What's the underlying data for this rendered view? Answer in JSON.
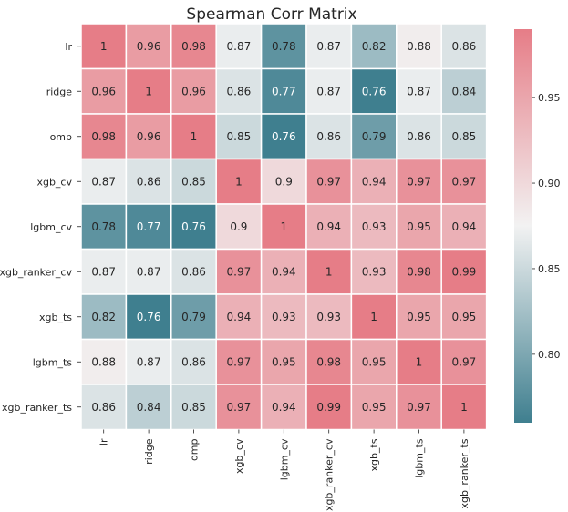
{
  "chart_data": {
    "type": "heatmap",
    "title": "Spearman Corr Matrix",
    "xlabel": "",
    "ylabel": "",
    "rows": [
      "lr",
      "ridge",
      "omp",
      "xgb_cv",
      "lgbm_cv",
      "xgb_ranker_cv",
      "xgb_ts",
      "lgbm_ts",
      "xgb_ranker_ts"
    ],
    "columns": [
      "lr",
      "ridge",
      "omp",
      "xgb_cv",
      "lgbm_cv",
      "xgb_ranker_cv",
      "xgb_ts",
      "lgbm_ts",
      "xgb_ranker_ts"
    ],
    "values": [
      [
        1,
        0.96,
        0.98,
        0.87,
        0.78,
        0.87,
        0.82,
        0.88,
        0.86
      ],
      [
        0.96,
        1,
        0.96,
        0.86,
        0.77,
        0.87,
        0.76,
        0.87,
        0.84
      ],
      [
        0.98,
        0.96,
        1,
        0.85,
        0.76,
        0.86,
        0.79,
        0.86,
        0.85
      ],
      [
        0.87,
        0.86,
        0.85,
        1,
        0.9,
        0.97,
        0.94,
        0.97,
        0.97
      ],
      [
        0.78,
        0.77,
        0.76,
        0.9,
        1,
        0.94,
        0.93,
        0.95,
        0.94
      ],
      [
        0.87,
        0.87,
        0.86,
        0.97,
        0.94,
        1,
        0.93,
        0.98,
        0.99
      ],
      [
        0.82,
        0.76,
        0.79,
        0.94,
        0.93,
        0.93,
        1,
        0.95,
        0.95
      ],
      [
        0.88,
        0.87,
        0.86,
        0.97,
        0.95,
        0.98,
        0.95,
        1,
        0.97
      ],
      [
        0.86,
        0.84,
        0.85,
        0.97,
        0.94,
        0.99,
        0.95,
        0.97,
        1
      ]
    ],
    "display_values": [
      [
        "1",
        "0.96",
        "0.98",
        "0.87",
        "0.78",
        "0.87",
        "0.82",
        "0.88",
        "0.86"
      ],
      [
        "0.96",
        "1",
        "0.96",
        "0.86",
        "0.77",
        "0.87",
        "0.76",
        "0.87",
        "0.84"
      ],
      [
        "0.98",
        "0.96",
        "1",
        "0.85",
        "0.76",
        "0.86",
        "0.79",
        "0.86",
        "0.85"
      ],
      [
        "0.87",
        "0.86",
        "0.85",
        "1",
        "0.9",
        "0.97",
        "0.94",
        "0.97",
        "0.97"
      ],
      [
        "0.78",
        "0.77",
        "0.76",
        "0.9",
        "1",
        "0.94",
        "0.93",
        "0.95",
        "0.94"
      ],
      [
        "0.87",
        "0.87",
        "0.86",
        "0.97",
        "0.94",
        "1",
        "0.93",
        "0.98",
        "0.99"
      ],
      [
        "0.82",
        "0.76",
        "0.79",
        "0.94",
        "0.93",
        "0.93",
        "1",
        "0.95",
        "0.95"
      ],
      [
        "0.88",
        "0.87",
        "0.86",
        "0.97",
        "0.95",
        "0.98",
        "0.95",
        "1",
        "0.97"
      ],
      [
        "0.86",
        "0.84",
        "0.85",
        "0.97",
        "0.94",
        "0.99",
        "0.95",
        "0.97",
        "1"
      ]
    ],
    "colorbar": {
      "vmin": 0.76,
      "vmax": 0.99,
      "ticks": [
        0.8,
        0.85,
        0.9,
        0.95
      ],
      "tick_labels": [
        "0.80",
        "0.85",
        "0.90",
        "0.95"
      ],
      "low_color": "#3f7f8f",
      "mid_color": "#f2f2f2",
      "high_color": "#e67d87"
    },
    "grid_line_color": "#ffffff"
  }
}
